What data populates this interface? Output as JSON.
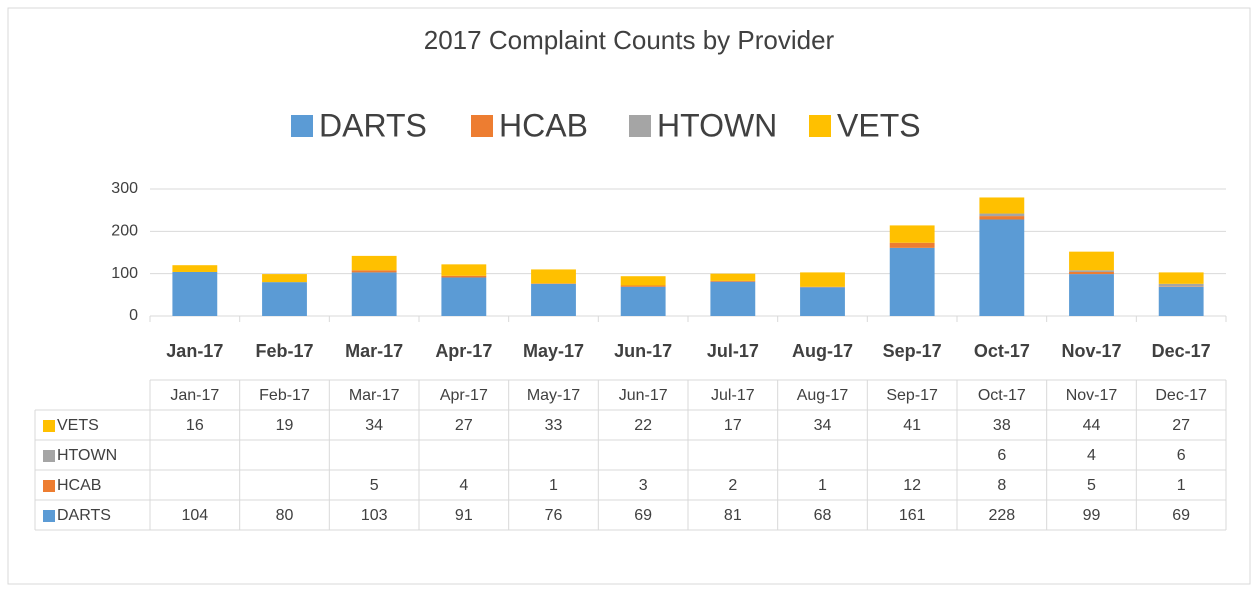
{
  "chart_data": {
    "type": "stacked_bar",
    "title": "2017 Complaint Counts by Provider",
    "categories": [
      "Jan-17",
      "Feb-17",
      "Mar-17",
      "Apr-17",
      "May-17",
      "Jun-17",
      "Jul-17",
      "Aug-17",
      "Sep-17",
      "Oct-17",
      "Nov-17",
      "Dec-17"
    ],
    "series": [
      {
        "name": "DARTS",
        "color": "#5b9bd5",
        "values": [
          104,
          80,
          103,
          91,
          76,
          69,
          81,
          68,
          161,
          228,
          99,
          69
        ]
      },
      {
        "name": "HCAB",
        "color": "#ed7d31",
        "values": [
          null,
          null,
          5,
          4,
          1,
          3,
          2,
          1,
          12,
          8,
          5,
          1
        ]
      },
      {
        "name": "HTOWN",
        "color": "#a5a5a5",
        "values": [
          null,
          null,
          null,
          null,
          null,
          null,
          null,
          null,
          null,
          6,
          4,
          6
        ]
      },
      {
        "name": "VETS",
        "color": "#ffc000",
        "values": [
          16,
          19,
          34,
          27,
          33,
          22,
          17,
          34,
          41,
          38,
          44,
          27
        ]
      }
    ],
    "ylim": [
      0,
      300
    ],
    "yticks": [
      0,
      100,
      200,
      300
    ],
    "grid": true,
    "legend": "top",
    "data_table": true
  }
}
